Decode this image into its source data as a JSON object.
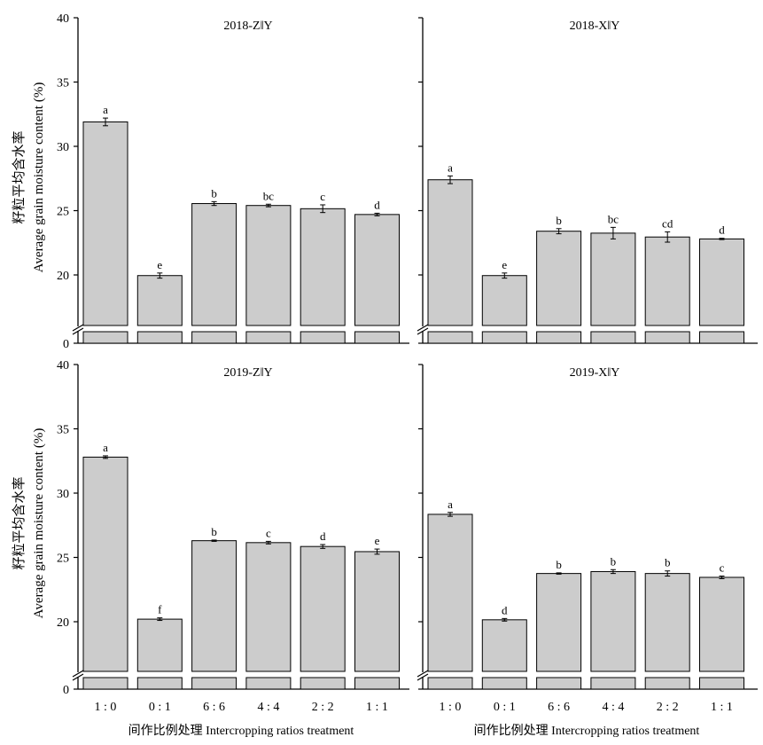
{
  "ylabel_cn": "籽粒平均含水率",
  "ylabel_en": "Average grain moisture content (%)",
  "xlabel": "间作比例处理 Intercropping ratios treatment",
  "colors": {
    "bar": "#cccccc",
    "stroke": "#000000"
  },
  "chart_data": [
    {
      "type": "bar",
      "title": "2018-Z‖Y",
      "categories": [
        "1 : 0",
        "0 : 1",
        "6 : 6",
        "4 : 4",
        "2 : 2",
        "1 : 1"
      ],
      "values": [
        31.9,
        19.95,
        25.55,
        25.4,
        25.15,
        24.7
      ],
      "errors": [
        0.3,
        0.2,
        0.15,
        0.1,
        0.3,
        0.1
      ],
      "labels": [
        "a",
        "e",
        "b",
        "bc",
        "c",
        "d"
      ],
      "yticks": [
        0,
        20,
        25,
        30,
        35,
        40
      ],
      "ylim": [
        0,
        40
      ],
      "axis_break": [
        0,
        16
      ]
    },
    {
      "type": "bar",
      "title": "2018-X‖Y",
      "categories": [
        "1 : 0",
        "0 : 1",
        "6 : 6",
        "4 : 4",
        "2 : 2",
        "1 : 1"
      ],
      "values": [
        27.4,
        19.95,
        23.4,
        23.25,
        22.95,
        22.8
      ],
      "errors": [
        0.3,
        0.2,
        0.2,
        0.45,
        0.4,
        0.05
      ],
      "labels": [
        "a",
        "e",
        "b",
        "bc",
        "cd",
        "d"
      ],
      "yticks": [
        0,
        20,
        25,
        30,
        35,
        40
      ],
      "ylim": [
        0,
        40
      ],
      "axis_break": [
        0,
        16
      ]
    },
    {
      "type": "bar",
      "title": "2019-Z‖Y",
      "categories": [
        "1 : 0",
        "0 : 1",
        "6 : 6",
        "4 : 4",
        "2 : 2",
        "1 : 1"
      ],
      "values": [
        32.8,
        20.2,
        26.3,
        26.15,
        25.85,
        25.45
      ],
      "errors": [
        0.1,
        0.1,
        0.05,
        0.1,
        0.15,
        0.2
      ],
      "labels": [
        "a",
        "f",
        "b",
        "c",
        "d",
        "e"
      ],
      "yticks": [
        0,
        20,
        25,
        30,
        35,
        40
      ],
      "ylim": [
        0,
        40
      ],
      "axis_break": [
        0,
        16
      ]
    },
    {
      "type": "bar",
      "title": "2019-X‖Y",
      "categories": [
        "1 : 0",
        "0 : 1",
        "6 : 6",
        "4 : 4",
        "2 : 2",
        "1 : 1"
      ],
      "values": [
        28.35,
        20.15,
        23.75,
        23.9,
        23.75,
        23.45
      ],
      "errors": [
        0.15,
        0.1,
        0.05,
        0.15,
        0.2,
        0.1
      ],
      "labels": [
        "a",
        "d",
        "b",
        "b",
        "b",
        "c"
      ],
      "yticks": [
        0,
        20,
        25,
        30,
        35,
        40
      ],
      "ylim": [
        0,
        40
      ],
      "axis_break": [
        0,
        16
      ]
    }
  ]
}
